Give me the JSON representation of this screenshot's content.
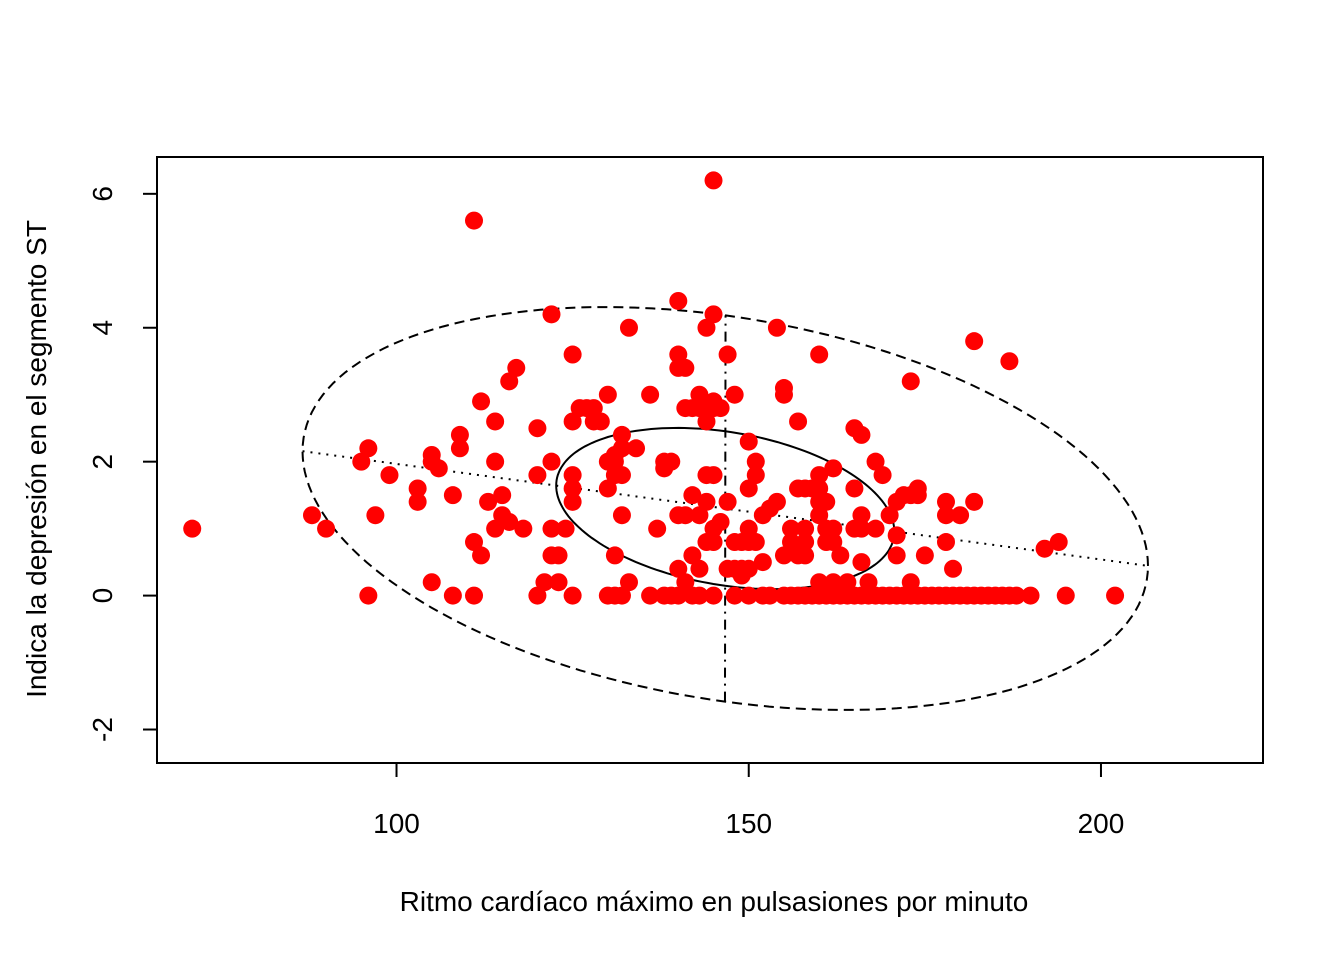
{
  "chart_data": {
    "type": "scatter",
    "title": "",
    "xlabel": "Ritmo cardíaco máximo en pulsasiones por minuto",
    "ylabel": "Indica la depresión en el segmento ST",
    "xlim": [
      66,
      223
    ],
    "ylim": [
      -2.5,
      6.55
    ],
    "x_ticks": [
      100,
      150,
      200
    ],
    "x_tick_labels": [
      "100",
      "150",
      "200"
    ],
    "y_ticks": [
      -2,
      0,
      2,
      4,
      6
    ],
    "y_tick_labels": [
      "-2",
      "0",
      "2",
      "4",
      "6"
    ],
    "grid": false,
    "legend": "none",
    "point_color": "#FF0000",
    "points": [
      [
        71,
        1.0
      ],
      [
        88,
        1.2
      ],
      [
        90,
        1.0
      ],
      [
        95,
        2.0
      ],
      [
        96,
        2.2
      ],
      [
        96,
        0.0
      ],
      [
        97,
        1.2
      ],
      [
        99,
        1.8
      ],
      [
        103,
        1.6
      ],
      [
        103,
        1.4
      ],
      [
        105,
        2.1
      ],
      [
        105,
        2.0
      ],
      [
        105,
        0.2
      ],
      [
        106,
        1.9
      ],
      [
        108,
        1.5
      ],
      [
        108,
        0.0
      ],
      [
        109,
        2.4
      ],
      [
        109,
        2.2
      ],
      [
        111,
        0.8
      ],
      [
        111,
        0.0
      ],
      [
        111,
        5.6
      ],
      [
        112,
        2.9
      ],
      [
        112,
        0.6
      ],
      [
        113,
        1.4
      ],
      [
        114,
        2.6
      ],
      [
        114,
        2.0
      ],
      [
        114,
        1.0
      ],
      [
        115,
        1.5
      ],
      [
        115,
        1.2
      ],
      [
        116,
        1.1
      ],
      [
        116,
        3.2
      ],
      [
        117,
        3.4
      ],
      [
        118,
        1.0
      ],
      [
        120,
        2.5
      ],
      [
        120,
        1.8
      ],
      [
        120,
        0.0
      ],
      [
        121,
        0.2
      ],
      [
        122,
        4.2
      ],
      [
        122,
        2.0
      ],
      [
        122,
        1.0
      ],
      [
        122,
        0.6
      ],
      [
        123,
        0.6
      ],
      [
        123,
        0.2
      ],
      [
        124,
        1.0
      ],
      [
        125,
        3.6
      ],
      [
        125,
        2.6
      ],
      [
        125,
        1.8
      ],
      [
        125,
        1.6
      ],
      [
        125,
        1.4
      ],
      [
        125,
        0.0
      ],
      [
        126,
        2.8
      ],
      [
        127,
        2.8
      ],
      [
        128,
        2.8
      ],
      [
        128,
        2.6
      ],
      [
        129,
        2.6
      ],
      [
        130,
        3.0
      ],
      [
        130,
        2.0
      ],
      [
        130,
        1.6
      ],
      [
        130,
        0.0
      ],
      [
        131,
        2.1
      ],
      [
        131,
        2.0
      ],
      [
        131,
        1.8
      ],
      [
        131,
        0.6
      ],
      [
        131,
        0.0
      ],
      [
        132,
        2.4
      ],
      [
        132,
        2.2
      ],
      [
        132,
        1.8
      ],
      [
        132,
        1.2
      ],
      [
        132,
        0.0
      ],
      [
        133,
        4.0
      ],
      [
        133,
        0.2
      ],
      [
        134,
        2.2
      ],
      [
        136,
        3.0
      ],
      [
        136,
        0.0
      ],
      [
        137,
        1.0
      ],
      [
        138,
        2.0
      ],
      [
        138,
        1.9
      ],
      [
        138,
        0.0
      ],
      [
        139,
        0.0
      ],
      [
        139,
        2.0
      ],
      [
        140,
        4.4
      ],
      [
        140,
        3.6
      ],
      [
        140,
        3.4
      ],
      [
        140,
        1.2
      ],
      [
        140,
        0.4
      ],
      [
        140,
        0.0
      ],
      [
        141,
        3.4
      ],
      [
        141,
        2.8
      ],
      [
        141,
        1.2
      ],
      [
        141,
        0.2
      ],
      [
        142,
        2.8
      ],
      [
        142,
        1.5
      ],
      [
        142,
        0.6
      ],
      [
        142,
        0.0
      ],
      [
        143,
        3.0
      ],
      [
        143,
        2.8
      ],
      [
        143,
        1.2
      ],
      [
        143,
        0.4
      ],
      [
        143,
        0.0
      ],
      [
        144,
        4.0
      ],
      [
        144,
        2.6
      ],
      [
        144,
        1.8
      ],
      [
        144,
        1.4
      ],
      [
        144,
        0.8
      ],
      [
        145,
        6.2
      ],
      [
        145,
        4.2
      ],
      [
        145,
        2.9
      ],
      [
        145,
        2.8
      ],
      [
        145,
        1.8
      ],
      [
        145,
        1.0
      ],
      [
        145,
        0.8
      ],
      [
        145,
        0.0
      ],
      [
        146,
        2.8
      ],
      [
        146,
        1.1
      ],
      [
        147,
        3.6
      ],
      [
        147,
        1.4
      ],
      [
        147,
        0.4
      ],
      [
        148,
        3.0
      ],
      [
        148,
        0.8
      ],
      [
        148,
        0.4
      ],
      [
        148,
        0.0
      ],
      [
        149,
        0.8
      ],
      [
        149,
        0.3
      ],
      [
        149,
        0.4
      ],
      [
        150,
        2.3
      ],
      [
        150,
        1.6
      ],
      [
        150,
        1.0
      ],
      [
        150,
        0.8
      ],
      [
        150,
        0.4
      ],
      [
        150,
        0.0
      ],
      [
        151,
        2.0
      ],
      [
        151,
        1.8
      ],
      [
        151,
        0.8
      ],
      [
        152,
        1.2
      ],
      [
        152,
        0.5
      ],
      [
        152,
        0.0
      ],
      [
        153,
        1.3
      ],
      [
        153,
        0.0
      ],
      [
        154,
        1.4
      ],
      [
        154,
        4.0
      ],
      [
        155,
        3.1
      ],
      [
        155,
        3.0
      ],
      [
        155,
        0.6
      ],
      [
        155,
        0.0
      ],
      [
        156,
        1.0
      ],
      [
        156,
        0.8
      ],
      [
        156,
        0.0
      ],
      [
        157,
        2.6
      ],
      [
        157,
        1.6
      ],
      [
        157,
        0.6
      ],
      [
        157,
        0.0
      ],
      [
        158,
        1.6
      ],
      [
        158,
        1.0
      ],
      [
        158,
        0.8
      ],
      [
        158,
        0.6
      ],
      [
        158,
        0.0
      ],
      [
        159,
        1.6
      ],
      [
        159,
        0.0
      ],
      [
        160,
        3.6
      ],
      [
        160,
        1.8
      ],
      [
        160,
        1.6
      ],
      [
        160,
        1.4
      ],
      [
        160,
        1.2
      ],
      [
        160,
        0.2
      ],
      [
        160,
        0.0
      ],
      [
        161,
        1.4
      ],
      [
        161,
        1.0
      ],
      [
        161,
        0.8
      ],
      [
        161,
        0.0
      ],
      [
        162,
        1.9
      ],
      [
        162,
        1.0
      ],
      [
        162,
        0.8
      ],
      [
        162,
        0.2
      ],
      [
        162,
        0.0
      ],
      [
        163,
        0.6
      ],
      [
        163,
        0.0
      ],
      [
        164,
        0.2
      ],
      [
        164,
        0.0
      ],
      [
        165,
        2.5
      ],
      [
        165,
        1.6
      ],
      [
        165,
        1.0
      ],
      [
        165,
        0.0
      ],
      [
        166,
        2.4
      ],
      [
        166,
        1.2
      ],
      [
        166,
        1.0
      ],
      [
        166,
        0.5
      ],
      [
        166,
        0.0
      ],
      [
        167,
        0.2
      ],
      [
        167,
        0.0
      ],
      [
        168,
        2.0
      ],
      [
        168,
        1.0
      ],
      [
        168,
        0.0
      ],
      [
        169,
        1.8
      ],
      [
        169,
        0.0
      ],
      [
        170,
        1.2
      ],
      [
        170,
        0.0
      ],
      [
        171,
        1.4
      ],
      [
        171,
        0.9
      ],
      [
        171,
        0.6
      ],
      [
        171,
        0.0
      ],
      [
        172,
        1.5
      ],
      [
        172,
        0.0
      ],
      [
        173,
        3.2
      ],
      [
        173,
        1.5
      ],
      [
        173,
        0.2
      ],
      [
        173,
        0.0
      ],
      [
        174,
        1.6
      ],
      [
        174,
        1.5
      ],
      [
        174,
        0.0
      ],
      [
        175,
        0.6
      ],
      [
        175,
        0.0
      ],
      [
        176,
        0.0
      ],
      [
        177,
        0.0
      ],
      [
        178,
        1.4
      ],
      [
        178,
        1.2
      ],
      [
        178,
        0.8
      ],
      [
        178,
        0.0
      ],
      [
        179,
        0.4
      ],
      [
        179,
        0.0
      ],
      [
        180,
        1.2
      ],
      [
        180,
        0.0
      ],
      [
        181,
        0.0
      ],
      [
        182,
        3.8
      ],
      [
        182,
        1.4
      ],
      [
        182,
        0.0
      ],
      [
        183,
        0.0
      ],
      [
        184,
        0.0
      ],
      [
        185,
        0.0
      ],
      [
        186,
        0.0
      ],
      [
        187,
        3.5
      ],
      [
        187,
        0.0
      ],
      [
        188,
        0.0
      ],
      [
        190,
        0.0
      ],
      [
        192,
        0.7
      ],
      [
        194,
        0.8
      ],
      [
        195,
        0.0
      ],
      [
        202,
        0.0
      ]
    ]
  }
}
